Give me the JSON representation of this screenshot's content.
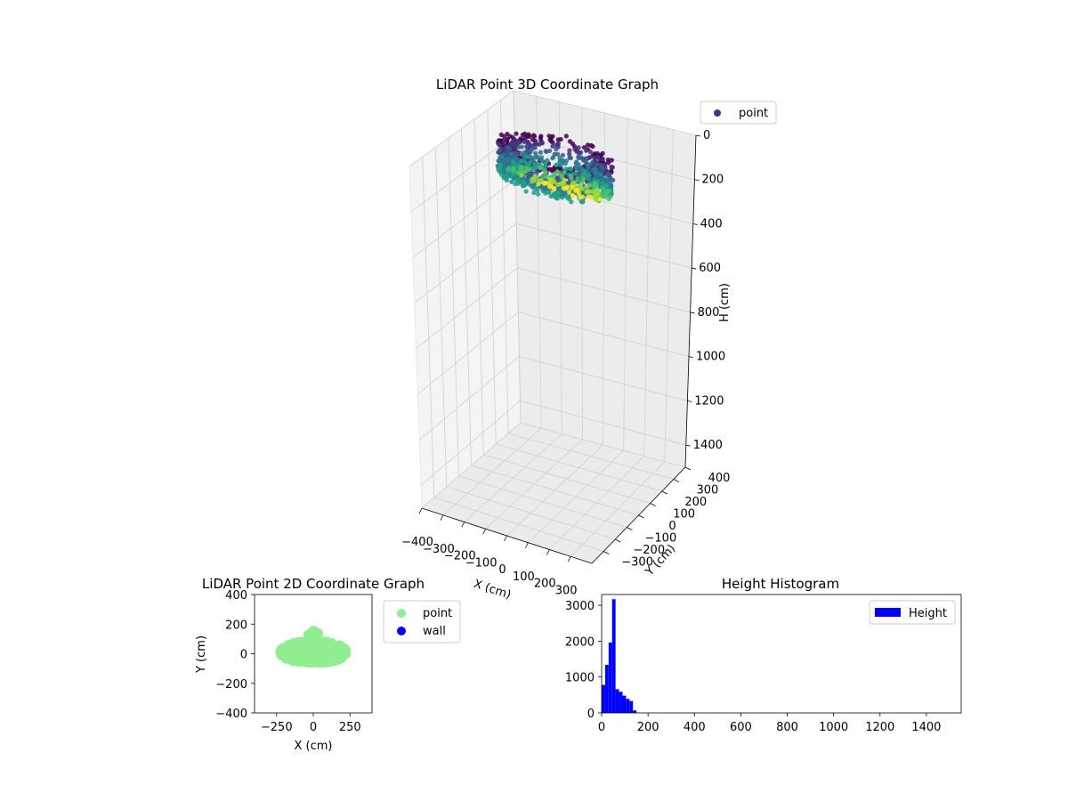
{
  "chart_data": [
    {
      "type": "scatter",
      "projection": "3d",
      "title": "LiDAR Point 3D Coordinate Graph",
      "xlabel": "X (cm)",
      "ylabel": "Y (cm)",
      "zlabel": "H (cm)",
      "xlim": [
        -400,
        400
      ],
      "ylim": [
        -400,
        400
      ],
      "zlim": [
        0,
        1500
      ],
      "z_inverted": true,
      "xticks": [
        "−400",
        "−300",
        "−200",
        "−100",
        "0",
        "100",
        "200",
        "300"
      ],
      "yticks": [
        "−300",
        "−200",
        "−100",
        "0",
        "100",
        "200",
        "300",
        "400"
      ],
      "zticks": [
        "0",
        "200",
        "400",
        "600",
        "800",
        "1000",
        "1200",
        "1400"
      ],
      "colormap": "viridis",
      "legend": {
        "placement": "top-right",
        "entries": [
          {
            "name": "point",
            "color": "#46327e"
          }
        ]
      },
      "point_cloud": {
        "x_range": [
          -250,
          250
        ],
        "y_range": [
          -100,
          170
        ],
        "h_range": [
          0,
          250
        ]
      }
    },
    {
      "type": "scatter",
      "title": "LiDAR Point 2D Coordinate Graph",
      "xlabel": "X (cm)",
      "ylabel": "Y (cm)",
      "xlim": [
        -400,
        400
      ],
      "ylim": [
        -400,
        400
      ],
      "xticks": [
        "−250",
        "0",
        "250"
      ],
      "yticks": [
        "−400",
        "−200",
        "0",
        "200",
        "400"
      ],
      "legend": {
        "placement": "outside-right",
        "entries": [
          {
            "name": "point",
            "color": "#90ee90"
          },
          {
            "name": "wall",
            "color": "#0000ff"
          }
        ]
      },
      "series": [
        {
          "name": "point",
          "color": "#90ee90",
          "x_range": [
            -250,
            250
          ],
          "y_range": [
            -100,
            170
          ]
        },
        {
          "name": "wall",
          "color": "#0000ff",
          "x": [],
          "y": []
        }
      ]
    },
    {
      "type": "bar",
      "title": "Height Histogram",
      "legend": {
        "placement": "top-right",
        "entries": [
          {
            "name": "Height",
            "color": "#0000ff"
          }
        ]
      },
      "color": "#0000ff",
      "xlim": [
        0,
        1550
      ],
      "ylim": [
        0,
        3300
      ],
      "xticks": [
        "0",
        "200",
        "400",
        "600",
        "800",
        "1000",
        "1200",
        "1400"
      ],
      "yticks": [
        "0",
        "1000",
        "2000",
        "3000"
      ],
      "bin_width": 15,
      "bins_start": [
        0,
        15,
        30,
        45,
        60,
        75,
        90,
        105,
        120,
        135,
        150
      ],
      "values": [
        780,
        1340,
        1960,
        3170,
        660,
        590,
        480,
        390,
        330,
        70,
        5
      ]
    }
  ]
}
